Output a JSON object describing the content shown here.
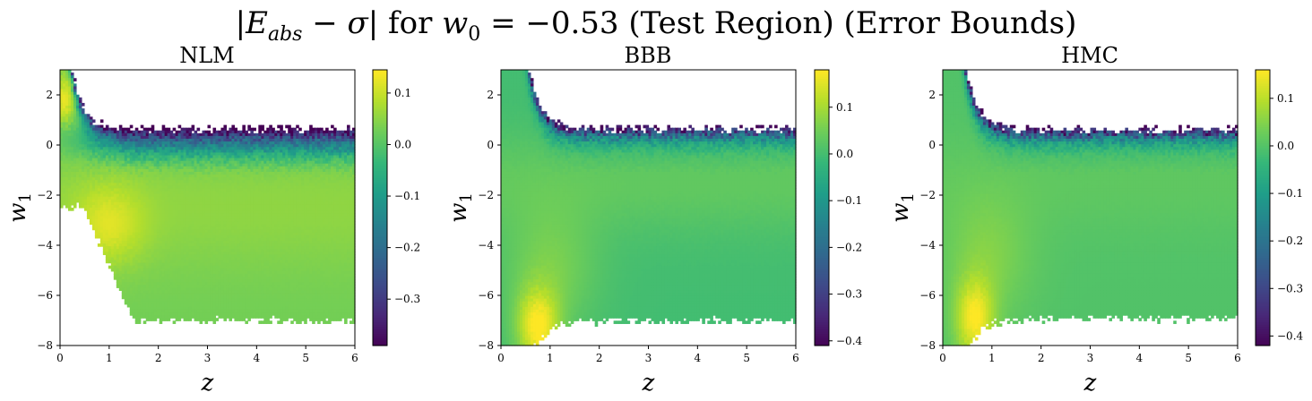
{
  "title": {
    "text": "|E_abs − σ| for w_0 = −0.53 (Test Region) (Error Bounds)"
  },
  "chart_data": [
    {
      "type": "heatmap",
      "title": "NLM",
      "xlabel": "z",
      "ylabel": "w_1",
      "xlim": [
        0,
        6
      ],
      "ylim": [
        -8,
        3
      ],
      "xticks": [
        0,
        1,
        2,
        3,
        4,
        5,
        6
      ],
      "yticks": [
        -8,
        -6,
        -4,
        -2,
        0,
        2
      ],
      "colorbar": {
        "min": -0.39,
        "max": 0.145,
        "ticks": [
          0.1,
          0.0,
          -0.1,
          -0.2,
          -0.3
        ],
        "tick_labels": [
          "0.1",
          "0.0",
          "−0.1",
          "−0.2",
          "−0.3"
        ]
      },
      "colormap": "viridis"
    },
    {
      "type": "heatmap",
      "title": "BBB",
      "xlabel": "z",
      "ylabel": "w_1",
      "xlim": [
        0,
        6
      ],
      "ylim": [
        -8,
        3
      ],
      "xticks": [
        0,
        1,
        2,
        3,
        4,
        5,
        6
      ],
      "yticks": [
        -8,
        -6,
        -4,
        -2,
        0,
        2
      ],
      "colorbar": {
        "min": -0.41,
        "max": 0.18,
        "ticks": [
          0.1,
          0.0,
          -0.1,
          -0.2,
          -0.3,
          -0.4
        ],
        "tick_labels": [
          "0.1",
          "0.0",
          "−0.1",
          "−0.2",
          "−0.3",
          "−0.4"
        ]
      },
      "colormap": "viridis"
    },
    {
      "type": "heatmap",
      "title": "HMC",
      "xlabel": "z",
      "ylabel": "w_1",
      "xlim": [
        0,
        6
      ],
      "ylim": [
        -8,
        3
      ],
      "xticks": [
        0,
        1,
        2,
        3,
        4,
        5,
        6
      ],
      "yticks": [
        -8,
        -6,
        -4,
        -2,
        0,
        2
      ],
      "colorbar": {
        "min": -0.42,
        "max": 0.16,
        "ticks": [
          0.1,
          0.0,
          -0.1,
          -0.2,
          -0.3,
          -0.4
        ],
        "tick_labels": [
          "0.1",
          "0.0",
          "−0.1",
          "−0.2",
          "−0.3",
          "−0.4"
        ]
      },
      "colormap": "viridis"
    }
  ]
}
